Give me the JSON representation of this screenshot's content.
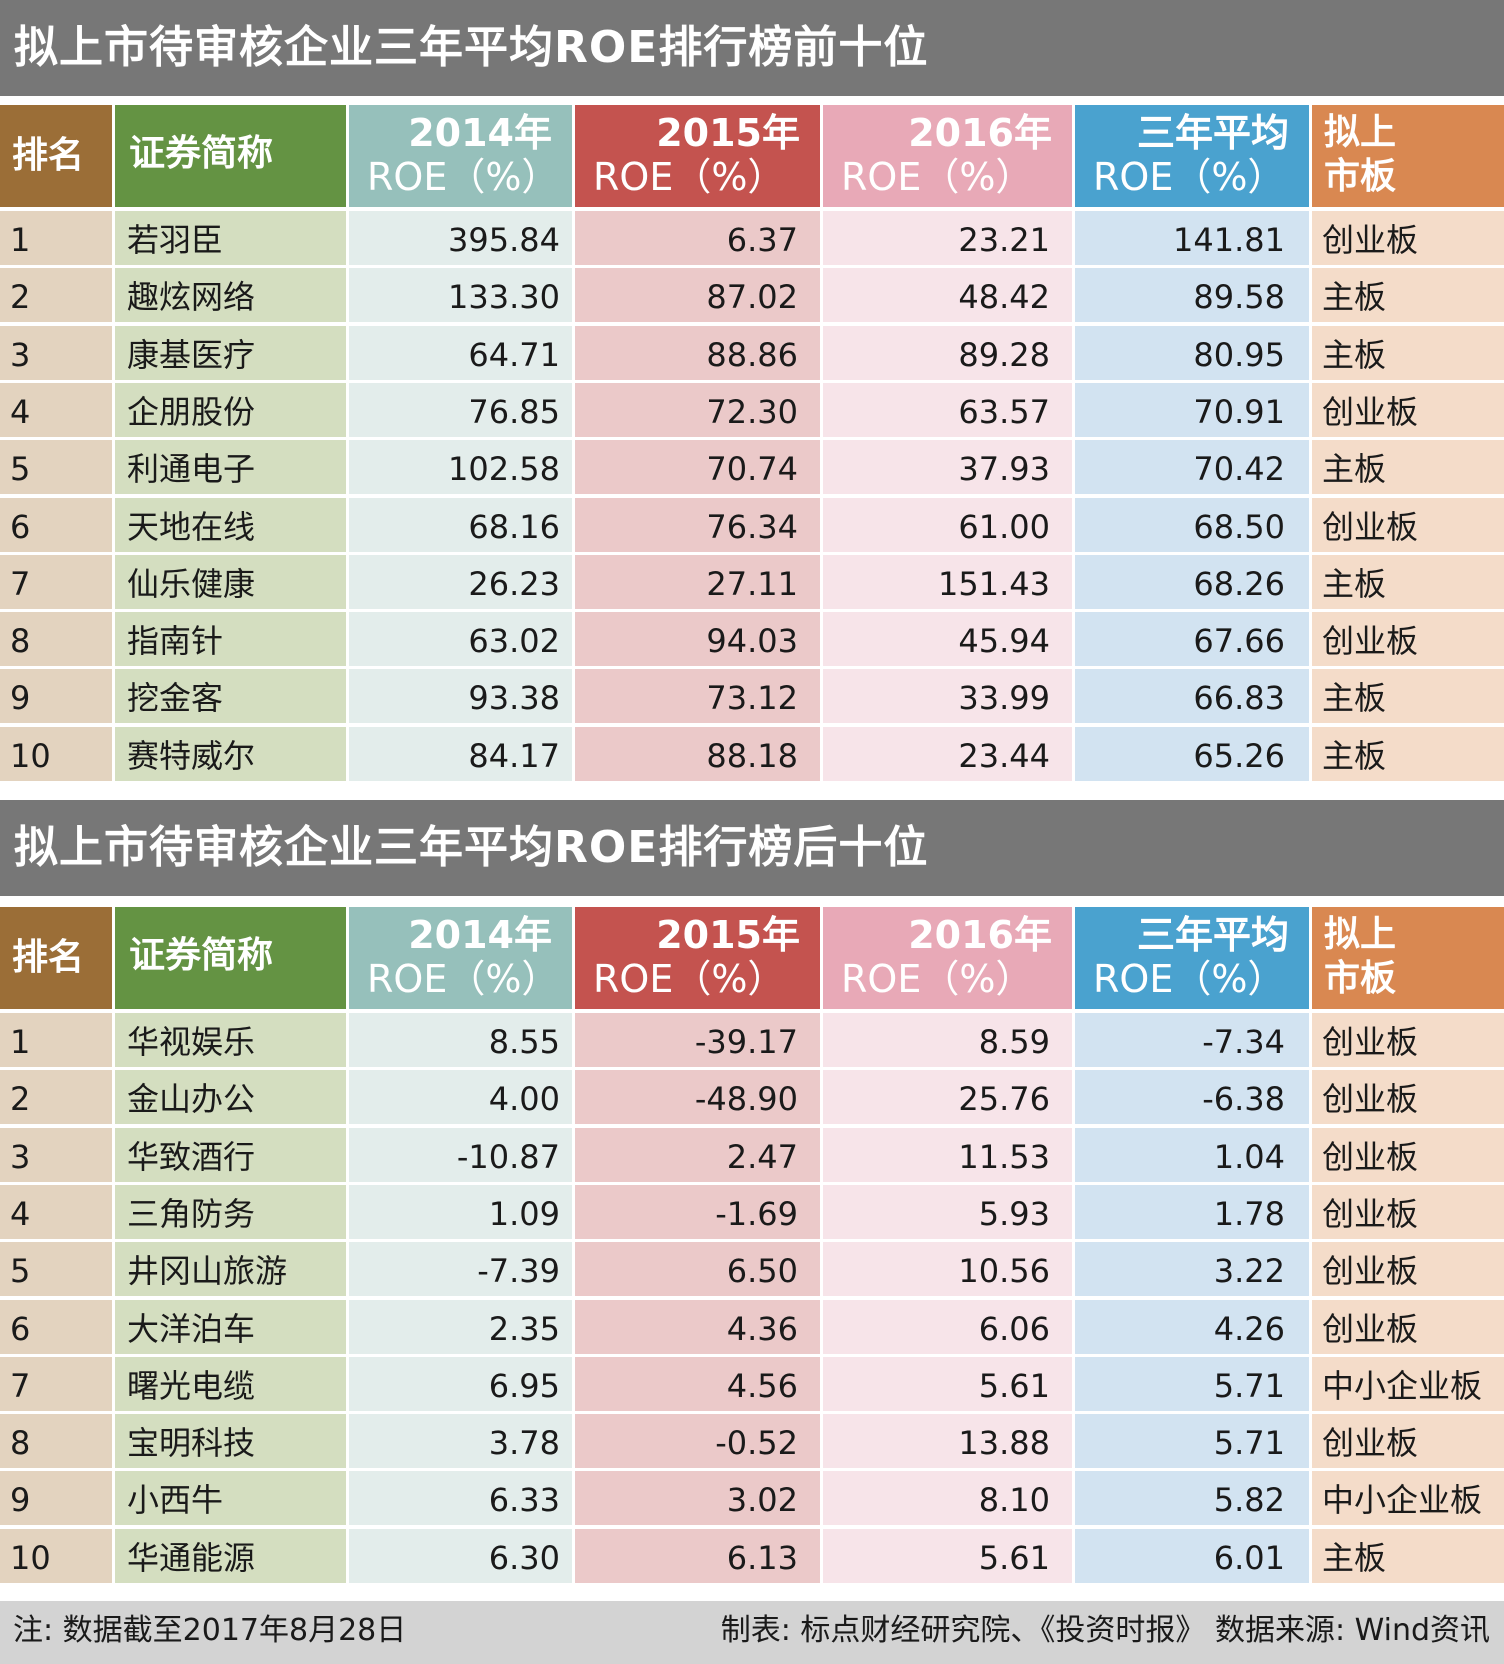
{
  "tables": [
    {
      "title": "拟上市待审核企业三年平均ROE排行榜前十位",
      "headers": {
        "rank": "排名",
        "name": "证券简称",
        "y2014_l1": "2014年",
        "y2014_l2": "ROE（%）",
        "y2015_l1": "2015年",
        "y2015_l2": "ROE（%）",
        "y2016_l1": "2016年",
        "y2016_l2": "ROE（%）",
        "avg_l1": "三年平均",
        "avg_l2": "ROE（%）",
        "board_l1": "拟上",
        "board_l2": "市板"
      },
      "rows": [
        {
          "rank": "1",
          "name": "若羽臣",
          "y2014": "395.84",
          "y2015": "6.37",
          "y2016": "23.21",
          "avg": "141.81",
          "board": "创业板"
        },
        {
          "rank": "2",
          "name": "趣炫网络",
          "y2014": "133.30",
          "y2015": "87.02",
          "y2016": "48.42",
          "avg": "89.58",
          "board": "主板"
        },
        {
          "rank": "3",
          "name": "康基医疗",
          "y2014": "64.71",
          "y2015": "88.86",
          "y2016": "89.28",
          "avg": "80.95",
          "board": "主板"
        },
        {
          "rank": "4",
          "name": "企朋股份",
          "y2014": "76.85",
          "y2015": "72.30",
          "y2016": "63.57",
          "avg": "70.91",
          "board": "创业板"
        },
        {
          "rank": "5",
          "name": "利通电子",
          "y2014": "102.58",
          "y2015": "70.74",
          "y2016": "37.93",
          "avg": "70.42",
          "board": "主板"
        },
        {
          "rank": "6",
          "name": "天地在线",
          "y2014": "68.16",
          "y2015": "76.34",
          "y2016": "61.00",
          "avg": "68.50",
          "board": "创业板"
        },
        {
          "rank": "7",
          "name": "仙乐健康",
          "y2014": "26.23",
          "y2015": "27.11",
          "y2016": "151.43",
          "avg": "68.26",
          "board": "主板"
        },
        {
          "rank": "8",
          "name": "指南针",
          "y2014": "63.02",
          "y2015": "94.03",
          "y2016": "45.94",
          "avg": "67.66",
          "board": "创业板"
        },
        {
          "rank": "9",
          "name": "挖金客",
          "y2014": "93.38",
          "y2015": "73.12",
          "y2016": "33.99",
          "avg": "66.83",
          "board": "主板"
        },
        {
          "rank": "10",
          "name": "赛特威尔",
          "y2014": "84.17",
          "y2015": "88.18",
          "y2016": "23.44",
          "avg": "65.26",
          "board": "主板"
        }
      ]
    },
    {
      "title": "拟上市待审核企业三年平均ROE排行榜后十位",
      "headers": {
        "rank": "排名",
        "name": "证券简称",
        "y2014_l1": "2014年",
        "y2014_l2": "ROE（%）",
        "y2015_l1": "2015年",
        "y2015_l2": "ROE（%）",
        "y2016_l1": "2016年",
        "y2016_l2": "ROE（%）",
        "avg_l1": "三年平均",
        "avg_l2": "ROE（%）",
        "board_l1": "拟上",
        "board_l2": "市板"
      },
      "rows": [
        {
          "rank": "1",
          "name": "华视娱乐",
          "y2014": "8.55",
          "y2015": "-39.17",
          "y2016": "8.59",
          "avg": "-7.34",
          "board": "创业板"
        },
        {
          "rank": "2",
          "name": "金山办公",
          "y2014": "4.00",
          "y2015": "-48.90",
          "y2016": "25.76",
          "avg": "-6.38",
          "board": "创业板"
        },
        {
          "rank": "3",
          "name": "华致酒行",
          "y2014": "-10.87",
          "y2015": "2.47",
          "y2016": "11.53",
          "avg": "1.04",
          "board": "创业板"
        },
        {
          "rank": "4",
          "name": "三角防务",
          "y2014": "1.09",
          "y2015": "-1.69",
          "y2016": "5.93",
          "avg": "1.78",
          "board": "创业板"
        },
        {
          "rank": "5",
          "name": "井冈山旅游",
          "y2014": "-7.39",
          "y2015": "6.50",
          "y2016": "10.56",
          "avg": "3.22",
          "board": "创业板"
        },
        {
          "rank": "6",
          "name": "大洋泊车",
          "y2014": "2.35",
          "y2015": "4.36",
          "y2016": "6.06",
          "avg": "4.26",
          "board": "创业板"
        },
        {
          "rank": "7",
          "name": "曙光电缆",
          "y2014": "6.95",
          "y2015": "4.56",
          "y2016": "5.61",
          "avg": "5.71",
          "board": "中小企业板"
        },
        {
          "rank": "8",
          "name": "宝明科技",
          "y2014": "3.78",
          "y2015": "-0.52",
          "y2016": "13.88",
          "avg": "5.71",
          "board": "创业板"
        },
        {
          "rank": "9",
          "name": "小西牛",
          "y2014": "6.33",
          "y2015": "3.02",
          "y2016": "8.10",
          "avg": "5.82",
          "board": "中小企业板"
        },
        {
          "rank": "10",
          "name": "华通能源",
          "y2014": "6.30",
          "y2015": "6.13",
          "y2016": "5.61",
          "avg": "6.01",
          "board": "主板"
        }
      ]
    }
  ],
  "footer": {
    "note": "注: 数据截至2017年8月28日",
    "credit": "制表: 标点财经研究院、《投资时报》 数据来源: Wind资讯"
  },
  "colors": {
    "title_bar": "#777777",
    "rank_header": "#9b6e37",
    "rank_cell": "#e3d3bf",
    "name_header": "#649343",
    "name_cell": "#d4dec0",
    "y2014_header": "#96c0bb",
    "y2014_cell": "#e3edeb",
    "y2015_header": "#c4534f",
    "y2015_cell": "#ebc9c9",
    "y2016_header": "#e8a9b7",
    "y2016_cell": "#f7e4e9",
    "avg_header": "#4aa2cf",
    "avg_cell": "#d2e3f1",
    "board_header": "#d98851",
    "board_cell": "#f4dcc9",
    "footer_bg": "#d3d3d3"
  }
}
